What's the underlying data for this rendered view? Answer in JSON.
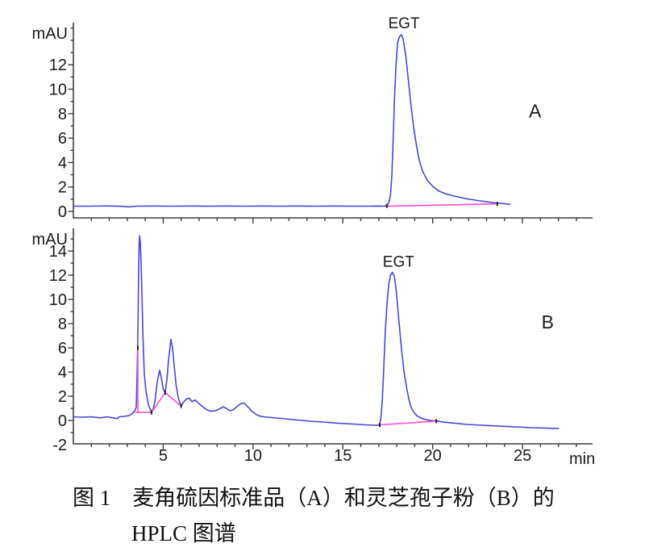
{
  "caption": {
    "line1": "图 1　麦角硫因标准品（A）和灵芝孢子粉（B）的",
    "line2": "HPLC 图谱"
  },
  "colors": {
    "trace": "#4646d8",
    "integration": "#ff4cd1",
    "axis": "#3d3d3d",
    "text": "#1a1a1a",
    "marker": "#1f1f1f"
  },
  "chart_data": [
    {
      "id": "panel-A",
      "type": "line",
      "panel_label": "A",
      "y_axis_title": "mAU",
      "x_axis_title": "",
      "x_unit": "min",
      "y_unit": "mAU",
      "xlim": [
        0,
        28.9
      ],
      "ylim": [
        -0.53,
        15.45
      ],
      "ytick_labels": [
        0,
        2,
        4,
        6,
        8,
        10,
        12
      ],
      "xtick_major": [
        5,
        10,
        15,
        20,
        25
      ],
      "xtick_labels_shown": false,
      "notable_peaks": [
        {
          "name": "EGT",
          "retention_min": 18.25,
          "height_mAU": 14.45
        }
      ],
      "annotations": [
        {
          "text": "EGT",
          "x": 18.4,
          "y": 15.0,
          "size": 19,
          "role": "peak-label"
        },
        {
          "text": "A",
          "x": 25.7,
          "y": 7.7,
          "size": 23,
          "role": "panel-label"
        }
      ],
      "series": [
        {
          "name": "chromatogram",
          "color": "trace",
          "points": [
            [
              0,
              0.43
            ],
            [
              0.9,
              0.43
            ],
            [
              1.8,
              0.45
            ],
            [
              2.6,
              0.42
            ],
            [
              3.1,
              0.37
            ],
            [
              3.5,
              0.43
            ],
            [
              4.5,
              0.44
            ],
            [
              5.5,
              0.43
            ],
            [
              6.5,
              0.44
            ],
            [
              7.5,
              0.43
            ],
            [
              8.5,
              0.44
            ],
            [
              9.5,
              0.43
            ],
            [
              10.5,
              0.44
            ],
            [
              11.5,
              0.43
            ],
            [
              12.5,
              0.44
            ],
            [
              13.5,
              0.43
            ],
            [
              14.5,
              0.44
            ],
            [
              15.5,
              0.43
            ],
            [
              16.5,
              0.43
            ],
            [
              17.0,
              0.44
            ],
            [
              17.3,
              0.43
            ],
            [
              17.45,
              0.5
            ],
            [
              17.55,
              0.66
            ],
            [
              17.65,
              1.3
            ],
            [
              17.73,
              3.0
            ],
            [
              17.8,
              6.0
            ],
            [
              17.88,
              9.3
            ],
            [
              17.96,
              12.0
            ],
            [
              18.05,
              13.8
            ],
            [
              18.15,
              14.3
            ],
            [
              18.25,
              14.45
            ],
            [
              18.35,
              14.15
            ],
            [
              18.5,
              12.8
            ],
            [
              18.65,
              10.7
            ],
            [
              18.8,
              8.6
            ],
            [
              18.95,
              6.8
            ],
            [
              19.1,
              5.4
            ],
            [
              19.25,
              4.2
            ],
            [
              19.45,
              3.25
            ],
            [
              19.7,
              2.55
            ],
            [
              20.0,
              2.05
            ],
            [
              20.35,
              1.66
            ],
            [
              20.7,
              1.45
            ],
            [
              21.2,
              1.25
            ],
            [
              21.8,
              1.06
            ],
            [
              22.5,
              0.89
            ],
            [
              23.3,
              0.73
            ],
            [
              23.8,
              0.66
            ],
            [
              24.3,
              0.58
            ]
          ]
        },
        {
          "name": "integration-baseline",
          "color": "integration",
          "segments": [
            [
              [
                17.42,
                0.42
              ],
              [
                23.6,
                0.62
              ]
            ]
          ]
        }
      ],
      "markers": [
        [
          17.45,
          0.45
        ],
        [
          23.6,
          0.62
        ]
      ]
    },
    {
      "id": "panel-B",
      "type": "line",
      "panel_label": "B",
      "y_axis_title": "mAU",
      "x_axis_title": "min",
      "x_unit": "min",
      "y_unit": "mAU",
      "xlim": [
        0,
        28.9
      ],
      "ylim": [
        -1.93,
        15.87
      ],
      "ytick_labels": [
        -2,
        0,
        2,
        4,
        6,
        8,
        10,
        12,
        14
      ],
      "xtick_major": [
        5,
        10,
        15,
        20,
        25
      ],
      "xtick_labels_shown": true,
      "xtick_label_values": [
        5,
        10,
        15,
        20,
        25
      ],
      "notable_peaks": [
        {
          "name": "",
          "retention_min": 3.69,
          "height_mAU": 15.3
        },
        {
          "name": "",
          "retention_min": 4.8,
          "height_mAU": 4.15
        },
        {
          "name": "",
          "retention_min": 5.43,
          "height_mAU": 6.7
        },
        {
          "name": "EGT",
          "retention_min": 17.76,
          "height_mAU": 12.25
        }
      ],
      "annotations": [
        {
          "text": "EGT",
          "x": 18.1,
          "y": 12.7,
          "size": 19,
          "role": "peak-label"
        },
        {
          "text": "B",
          "x": 26.4,
          "y": 7.6,
          "size": 23,
          "role": "panel-label"
        }
      ],
      "series": [
        {
          "name": "chromatogram",
          "color": "trace",
          "points": [
            [
              0,
              0.3
            ],
            [
              0.5,
              0.27
            ],
            [
              1.0,
              0.3
            ],
            [
              1.5,
              0.22
            ],
            [
              1.9,
              0.3
            ],
            [
              2.2,
              0.22
            ],
            [
              2.45,
              0.15
            ],
            [
              2.55,
              0.3
            ],
            [
              2.8,
              0.33
            ],
            [
              3.1,
              0.4
            ],
            [
              3.3,
              0.6
            ],
            [
              3.42,
              0.8
            ],
            [
              3.5,
              1.1
            ],
            [
              3.54,
              3.4
            ],
            [
              3.57,
              5.5
            ],
            [
              3.6,
              8.0
            ],
            [
              3.63,
              12.0
            ],
            [
              3.66,
              14.6
            ],
            [
              3.69,
              15.27
            ],
            [
              3.73,
              14.6
            ],
            [
              3.78,
              12.6
            ],
            [
              3.83,
              9.8
            ],
            [
              3.88,
              6.6
            ],
            [
              3.95,
              3.8
            ],
            [
              4.05,
              2.35
            ],
            [
              4.18,
              1.3
            ],
            [
              4.35,
              0.68
            ],
            [
              4.45,
              1.0
            ],
            [
              4.55,
              1.7
            ],
            [
              4.67,
              3.2
            ],
            [
              4.8,
              4.15
            ],
            [
              4.9,
              3.5
            ],
            [
              5.0,
              2.6
            ],
            [
              5.11,
              2.32
            ],
            [
              5.2,
              3.3
            ],
            [
              5.3,
              5.0
            ],
            [
              5.43,
              6.7
            ],
            [
              5.52,
              6.0
            ],
            [
              5.62,
              4.4
            ],
            [
              5.72,
              2.9
            ],
            [
              5.85,
              1.8
            ],
            [
              6.0,
              1.2
            ],
            [
              6.15,
              1.55
            ],
            [
              6.32,
              1.8
            ],
            [
              6.46,
              1.83
            ],
            [
              6.6,
              1.55
            ],
            [
              6.77,
              1.7
            ],
            [
              6.95,
              1.45
            ],
            [
              7.15,
              1.2
            ],
            [
              7.35,
              0.95
            ],
            [
              7.6,
              0.78
            ],
            [
              7.9,
              0.8
            ],
            [
              8.1,
              0.93
            ],
            [
              8.35,
              1.13
            ],
            [
              8.5,
              1.0
            ],
            [
              8.7,
              0.82
            ],
            [
              8.9,
              0.87
            ],
            [
              9.1,
              1.15
            ],
            [
              9.33,
              1.4
            ],
            [
              9.5,
              1.44
            ],
            [
              9.73,
              1.1
            ],
            [
              9.95,
              0.75
            ],
            [
              10.2,
              0.47
            ],
            [
              10.45,
              0.33
            ],
            [
              10.8,
              0.27
            ],
            [
              11.3,
              0.2
            ],
            [
              11.8,
              0.14
            ],
            [
              12.5,
              0.04
            ],
            [
              13.2,
              -0.06
            ],
            [
              13.9,
              -0.13
            ],
            [
              14.7,
              -0.22
            ],
            [
              15.6,
              -0.3
            ],
            [
              16.3,
              -0.36
            ],
            [
              16.9,
              -0.4
            ],
            [
              17.05,
              -0.35
            ],
            [
              17.12,
              0.2
            ],
            [
              17.2,
              1.8
            ],
            [
              17.28,
              4.5
            ],
            [
              17.36,
              7.2
            ],
            [
              17.45,
              9.5
            ],
            [
              17.55,
              11.2
            ],
            [
              17.65,
              12.0
            ],
            [
              17.76,
              12.25
            ],
            [
              17.87,
              11.9
            ],
            [
              17.98,
              10.6
            ],
            [
              18.1,
              8.6
            ],
            [
              18.25,
              6.1
            ],
            [
              18.4,
              4.1
            ],
            [
              18.55,
              2.7
            ],
            [
              18.68,
              1.7
            ],
            [
              18.8,
              1.1
            ],
            [
              18.95,
              0.7
            ],
            [
              19.1,
              0.42
            ],
            [
              19.35,
              0.2
            ],
            [
              19.6,
              0.08
            ],
            [
              19.9,
              0.0
            ],
            [
              20.2,
              -0.04
            ],
            [
              20.6,
              -0.14
            ],
            [
              21.3,
              -0.24
            ],
            [
              21.9,
              -0.33
            ],
            [
              22.8,
              -0.4
            ],
            [
              23.7,
              -0.47
            ],
            [
              24.6,
              -0.53
            ],
            [
              25.5,
              -0.6
            ],
            [
              26.4,
              -0.64
            ],
            [
              27.0,
              -0.67
            ]
          ]
        },
        {
          "name": "integration-baseline",
          "color": "integration",
          "segments": [
            [
              [
                3.59,
                6.0
              ],
              [
                3.59,
                0.66
              ]
            ],
            [
              [
                3.45,
                0.67
              ],
              [
                4.35,
                0.66
              ]
            ],
            [
              [
                4.35,
                0.66
              ],
              [
                5.11,
                2.3
              ],
              [
                6.0,
                1.2
              ]
            ],
            [
              [
                17.05,
                -0.37
              ],
              [
                20.2,
                -0.05
              ]
            ]
          ]
        }
      ],
      "markers": [
        [
          3.59,
          6.0
        ],
        [
          4.35,
          0.66
        ],
        [
          5.11,
          2.3
        ],
        [
          6.0,
          1.2
        ],
        [
          17.05,
          -0.37
        ],
        [
          20.2,
          -0.05
        ]
      ]
    }
  ]
}
